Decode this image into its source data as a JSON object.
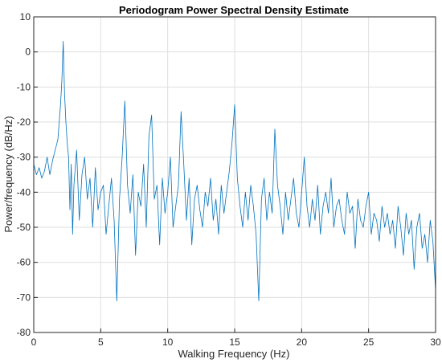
{
  "chart_data": {
    "type": "line",
    "title": "Periodogram Power Spectral Density Estimate",
    "xlabel": "Walking Frequency (Hz)",
    "ylabel": "Power/frequency (dB/Hz)",
    "xlim": [
      0,
      30
    ],
    "ylim": [
      -80,
      10
    ],
    "xticks": [
      0,
      5,
      10,
      15,
      20,
      25,
      30
    ],
    "yticks": [
      -80,
      -70,
      -60,
      -50,
      -40,
      -30,
      -20,
      -10,
      0,
      10
    ],
    "grid": true,
    "line_color": "#0072BD",
    "series": [
      {
        "x": [
          0,
          0.2,
          0.4,
          0.6,
          0.8,
          1.0,
          1.2,
          1.4,
          1.6,
          1.8,
          2.0,
          2.1,
          2.2,
          2.3,
          2.4,
          2.5,
          2.6,
          2.7,
          2.8,
          2.9,
          3.0,
          3.2,
          3.4,
          3.6,
          3.8,
          4.0,
          4.2,
          4.4,
          4.6,
          4.8,
          5.0,
          5.2,
          5.4,
          5.6,
          5.8,
          6.0,
          6.2,
          6.4,
          6.6,
          6.8,
          7.0,
          7.2,
          7.4,
          7.6,
          7.8,
          8.0,
          8.2,
          8.4,
          8.6,
          8.8,
          9.0,
          9.2,
          9.4,
          9.6,
          9.8,
          10.0,
          10.2,
          10.4,
          10.6,
          10.8,
          11.0,
          11.2,
          11.4,
          11.6,
          11.8,
          12.0,
          12.2,
          12.4,
          12.6,
          12.8,
          13.0,
          13.2,
          13.4,
          13.6,
          13.8,
          14.0,
          14.2,
          14.4,
          14.6,
          14.8,
          15.0,
          15.2,
          15.4,
          15.6,
          15.8,
          16.0,
          16.2,
          16.4,
          16.6,
          16.8,
          17.0,
          17.2,
          17.4,
          17.6,
          17.8,
          18.0,
          18.2,
          18.4,
          18.6,
          18.8,
          19.0,
          19.2,
          19.4,
          19.6,
          19.8,
          20.0,
          20.2,
          20.4,
          20.6,
          20.8,
          21.0,
          21.2,
          21.4,
          21.6,
          21.8,
          22.0,
          22.2,
          22.4,
          22.6,
          22.8,
          23.0,
          23.2,
          23.4,
          23.6,
          23.8,
          24.0,
          24.2,
          24.4,
          24.6,
          24.8,
          25.0,
          25.2,
          25.4,
          25.6,
          25.8,
          26.0,
          26.2,
          26.4,
          26.6,
          26.8,
          27.0,
          27.2,
          27.4,
          27.6,
          27.8,
          28.0,
          28.2,
          28.4,
          28.6,
          28.8,
          29.0,
          29.2,
          29.4,
          29.6,
          29.8,
          30.0
        ],
        "y": [
          -32,
          -35,
          -33,
          -36,
          -34,
          -30,
          -35,
          -31,
          -28,
          -25,
          -15,
          -8,
          3,
          -12,
          -20,
          -26,
          -30,
          -45,
          -32,
          -52,
          -38,
          -28,
          -48,
          -35,
          -30,
          -42,
          -36,
          -50,
          -33,
          -45,
          -40,
          -38,
          -52,
          -44,
          -36,
          -48,
          -71,
          -42,
          -30,
          -14,
          -38,
          -46,
          -35,
          -58,
          -40,
          -44,
          -32,
          -50,
          -24,
          -18,
          -42,
          -38,
          -55,
          -36,
          -46,
          -40,
          -30,
          -50,
          -44,
          -38,
          -17,
          -32,
          -48,
          -36,
          -55,
          -42,
          -38,
          -45,
          -50,
          -40,
          -44,
          -36,
          -48,
          -42,
          -52,
          -38,
          -46,
          -40,
          -34,
          -26,
          -15,
          -36,
          -44,
          -50,
          -40,
          -48,
          -38,
          -44,
          -52,
          -71,
          -42,
          -36,
          -48,
          -40,
          -46,
          -22,
          -38,
          -44,
          -52,
          -40,
          -48,
          -42,
          -36,
          -46,
          -50,
          -40,
          -30,
          -44,
          -50,
          -42,
          -48,
          -38,
          -52,
          -44,
          -40,
          -46,
          -36,
          -50,
          -44,
          -42,
          -48,
          -52,
          -40,
          -46,
          -44,
          -56,
          -42,
          -48,
          -50,
          -44,
          -40,
          -52,
          -46,
          -48,
          -54,
          -44,
          -50,
          -46,
          -52,
          -48,
          -56,
          -44,
          -50,
          -58,
          -46,
          -52,
          -48,
          -62,
          -50,
          -46,
          -56,
          -52,
          -60,
          -48,
          -54,
          -68
        ]
      }
    ]
  }
}
